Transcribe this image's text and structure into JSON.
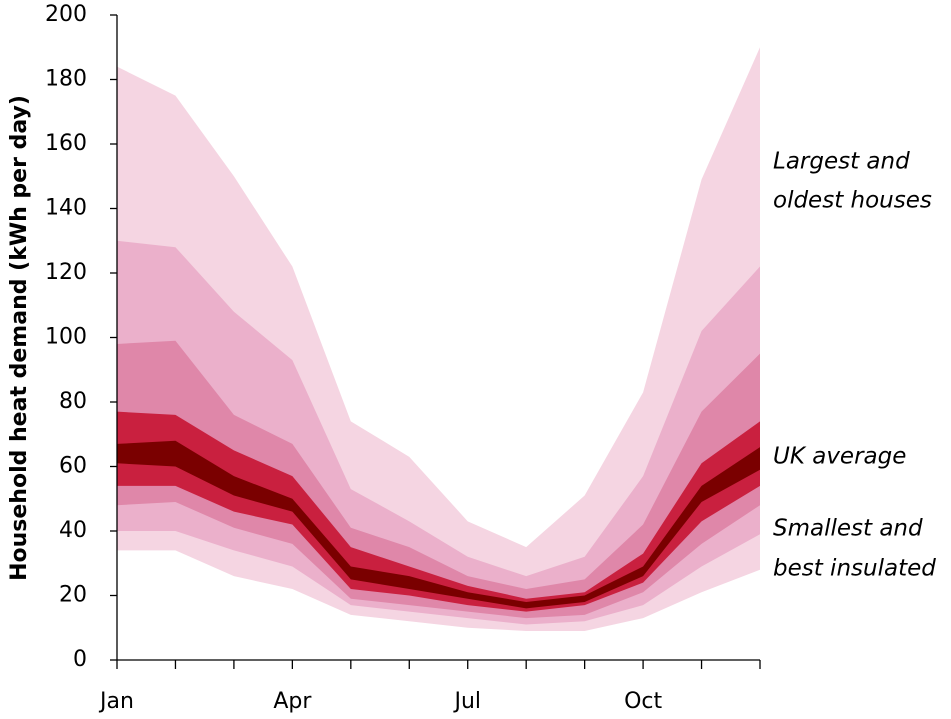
{
  "chart_data": {
    "type": "fan",
    "y_label": "Household heat demand (kWh per day)",
    "categories": [
      "Jan",
      null,
      null,
      "Apr",
      null,
      null,
      "Jul",
      null,
      null,
      "Oct",
      null,
      null
    ],
    "ylim": [
      0,
      200
    ],
    "yticks": [
      0,
      20,
      40,
      60,
      80,
      100,
      120,
      140,
      160,
      180,
      200
    ],
    "bands": [
      {
        "color": "#f5d5e2",
        "upper": [
          184,
          175,
          150,
          122,
          74,
          63,
          43,
          35,
          51,
          83,
          149,
          190
        ],
        "lower": [
          34,
          34,
          26,
          22,
          14,
          12,
          10,
          9,
          9,
          13,
          21,
          28
        ]
      },
      {
        "color": "#ebb0cb",
        "upper": [
          130,
          128,
          108,
          93,
          53,
          43,
          32,
          26,
          32,
          57,
          102,
          122
        ],
        "lower": [
          40,
          40,
          34,
          29,
          17,
          15,
          13,
          11,
          12,
          17,
          29,
          39
        ]
      },
      {
        "color": "#df87a9",
        "upper": [
          98,
          99,
          76,
          67,
          41,
          35,
          26,
          22,
          25,
          42,
          77,
          95
        ],
        "lower": [
          48,
          49,
          41,
          36,
          19,
          17,
          15,
          13,
          14,
          21,
          36,
          48
        ]
      },
      {
        "color": "#c9203f",
        "upper": [
          77,
          76,
          65,
          57,
          35,
          29,
          23,
          19,
          21,
          33,
          61,
          74
        ],
        "lower": [
          54,
          54,
          46,
          42,
          22,
          20,
          17,
          15,
          17,
          24,
          43,
          54
        ]
      },
      {
        "color": "#7a0000",
        "upper": [
          67,
          68,
          57,
          50,
          29,
          26,
          21,
          18,
          20,
          29,
          54,
          66
        ],
        "lower": [
          61,
          60,
          51,
          46,
          25,
          22,
          19,
          16,
          18,
          26,
          49,
          59
        ]
      }
    ],
    "annotations": [
      {
        "lines": [
          "Largest and",
          "oldest houses"
        ]
      },
      {
        "lines": [
          "UK average"
        ]
      },
      {
        "lines": [
          "Smallest and",
          "best insulated"
        ]
      }
    ]
  }
}
